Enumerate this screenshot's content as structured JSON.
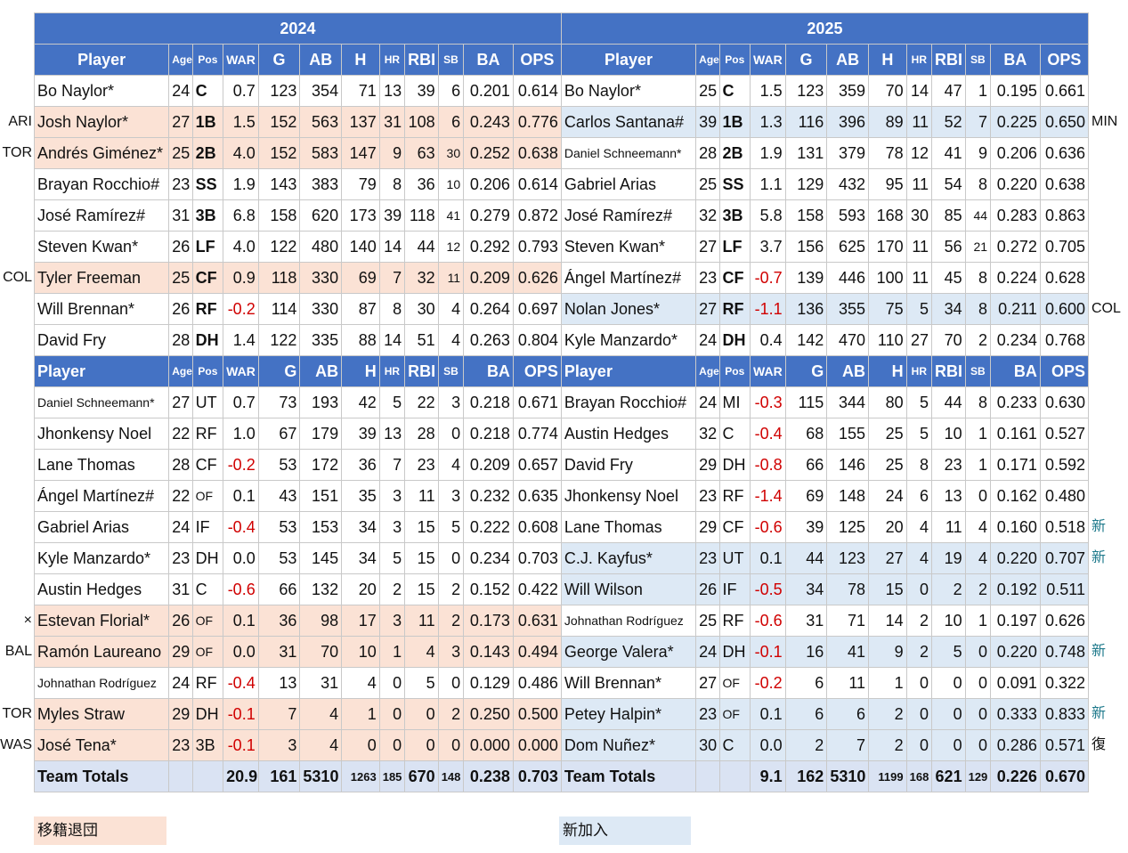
{
  "years": {
    "left": "2024",
    "right": "2025"
  },
  "headers": {
    "player": "Player",
    "age": "Age",
    "pos": "Pos",
    "war": "WAR",
    "g": "G",
    "ab": "AB",
    "h": "H",
    "hr": "HR",
    "rbi": "RBI",
    "sb": "SB",
    "ba": "BA",
    "ops": "OPS"
  },
  "starters": [
    {
      "l": [
        "Bo Naylor*",
        "24",
        "C",
        "0.7",
        "123",
        "354",
        "71",
        "13",
        "39",
        "6",
        "0.201",
        "0.614"
      ],
      "r": [
        "Bo Naylor*",
        "25",
        "C",
        "1.5",
        "123",
        "359",
        "70",
        "14",
        "47",
        "1",
        "0.195",
        "0.661"
      ]
    },
    {
      "l": [
        "Josh Naylor*",
        "27",
        "1B",
        "1.5",
        "152",
        "563",
        "137",
        "31",
        "108",
        "6",
        "0.243",
        "0.776"
      ],
      "r": [
        "Carlos Santana#",
        "39",
        "1B",
        "1.3",
        "116",
        "396",
        "89",
        "11",
        "52",
        "7",
        "0.225",
        "0.650"
      ]
    },
    {
      "l": [
        "Andrés Giménez*",
        "25",
        "2B",
        "4.0",
        "152",
        "583",
        "147",
        "9",
        "63",
        "30",
        "0.252",
        "0.638"
      ],
      "r": [
        "Daniel Schneemann*",
        "28",
        "2B",
        "1.9",
        "131",
        "379",
        "78",
        "12",
        "41",
        "9",
        "0.206",
        "0.636"
      ]
    },
    {
      "l": [
        "Brayan Rocchio#",
        "23",
        "SS",
        "1.9",
        "143",
        "383",
        "79",
        "8",
        "36",
        "10",
        "0.206",
        "0.614"
      ],
      "r": [
        "Gabriel Arias",
        "25",
        "SS",
        "1.1",
        "129",
        "432",
        "95",
        "11",
        "54",
        "8",
        "0.220",
        "0.638"
      ]
    },
    {
      "l": [
        "José Ramírez#",
        "31",
        "3B",
        "6.8",
        "158",
        "620",
        "173",
        "39",
        "118",
        "41",
        "0.279",
        "0.872"
      ],
      "r": [
        "José Ramírez#",
        "32",
        "3B",
        "5.8",
        "158",
        "593",
        "168",
        "30",
        "85",
        "44",
        "0.283",
        "0.863"
      ]
    },
    {
      "l": [
        "Steven Kwan*",
        "26",
        "LF",
        "4.0",
        "122",
        "480",
        "140",
        "14",
        "44",
        "12",
        "0.292",
        "0.793"
      ],
      "r": [
        "Steven Kwan*",
        "27",
        "LF",
        "3.7",
        "156",
        "625",
        "170",
        "11",
        "56",
        "21",
        "0.272",
        "0.705"
      ]
    },
    {
      "l": [
        "Tyler Freeman",
        "25",
        "CF",
        "0.9",
        "118",
        "330",
        "69",
        "7",
        "32",
        "11",
        "0.209",
        "0.626"
      ],
      "r": [
        "Ángel Martínez#",
        "23",
        "CF",
        "-0.7",
        "139",
        "446",
        "100",
        "11",
        "45",
        "8",
        "0.224",
        "0.628"
      ]
    },
    {
      "l": [
        "Will Brennan*",
        "26",
        "RF",
        "-0.2",
        "114",
        "330",
        "87",
        "8",
        "30",
        "4",
        "0.264",
        "0.697"
      ],
      "r": [
        "Nolan Jones*",
        "27",
        "RF",
        "-1.1",
        "136",
        "355",
        "75",
        "5",
        "34",
        "8",
        "0.211",
        "0.600"
      ]
    },
    {
      "l": [
        "David Fry",
        "28",
        "DH",
        "1.4",
        "122",
        "335",
        "88",
        "14",
        "51",
        "4",
        "0.263",
        "0.804"
      ],
      "r": [
        "Kyle Manzardo*",
        "24",
        "DH",
        "0.4",
        "142",
        "470",
        "110",
        "27",
        "70",
        "2",
        "0.234",
        "0.768"
      ]
    }
  ],
  "bench": [
    {
      "l": [
        "Daniel Schneemann*",
        "27",
        "UT",
        "0.7",
        "73",
        "193",
        "42",
        "5",
        "22",
        "3",
        "0.218",
        "0.671"
      ],
      "r": [
        "Brayan Rocchio#",
        "24",
        "MI",
        "-0.3",
        "115",
        "344",
        "80",
        "5",
        "44",
        "8",
        "0.233",
        "0.630"
      ]
    },
    {
      "l": [
        "Jhonkensy Noel",
        "22",
        "RF",
        "1.0",
        "67",
        "179",
        "39",
        "13",
        "28",
        "0",
        "0.218",
        "0.774"
      ],
      "r": [
        "Austin Hedges",
        "32",
        "C",
        "-0.4",
        "68",
        "155",
        "25",
        "5",
        "10",
        "1",
        "0.161",
        "0.527"
      ]
    },
    {
      "l": [
        "Lane Thomas",
        "28",
        "CF",
        "-0.2",
        "53",
        "172",
        "36",
        "7",
        "23",
        "4",
        "0.209",
        "0.657"
      ],
      "r": [
        "David Fry",
        "29",
        "DH",
        "-0.8",
        "66",
        "146",
        "25",
        "8",
        "23",
        "1",
        "0.171",
        "0.592"
      ]
    },
    {
      "l": [
        "Ángel Martínez#",
        "22",
        "OF",
        "0.1",
        "43",
        "151",
        "35",
        "3",
        "11",
        "3",
        "0.232",
        "0.635"
      ],
      "r": [
        "Jhonkensy Noel",
        "23",
        "RF",
        "-1.4",
        "69",
        "148",
        "24",
        "6",
        "13",
        "0",
        "0.162",
        "0.480"
      ]
    },
    {
      "l": [
        "Gabriel Arias",
        "24",
        "IF",
        "-0.4",
        "53",
        "153",
        "34",
        "3",
        "15",
        "5",
        "0.222",
        "0.608"
      ],
      "r": [
        "Lane Thomas",
        "29",
        "CF",
        "-0.6",
        "39",
        "125",
        "20",
        "4",
        "11",
        "4",
        "0.160",
        "0.518"
      ]
    },
    {
      "l": [
        "Kyle Manzardo*",
        "23",
        "DH",
        "0.0",
        "53",
        "145",
        "34",
        "5",
        "15",
        "0",
        "0.234",
        "0.703"
      ],
      "r": [
        "C.J. Kayfus*",
        "23",
        "UT",
        "0.1",
        "44",
        "123",
        "27",
        "4",
        "19",
        "4",
        "0.220",
        "0.707"
      ]
    },
    {
      "l": [
        "Austin Hedges",
        "31",
        "C",
        "-0.6",
        "66",
        "132",
        "20",
        "2",
        "15",
        "2",
        "0.152",
        "0.422"
      ],
      "r": [
        "Will Wilson",
        "26",
        "IF",
        "-0.5",
        "34",
        "78",
        "15",
        "0",
        "2",
        "2",
        "0.192",
        "0.511"
      ]
    },
    {
      "l": [
        "Estevan Florial*",
        "26",
        "OF",
        "0.1",
        "36",
        "98",
        "17",
        "3",
        "11",
        "2",
        "0.173",
        "0.631"
      ],
      "r": [
        "Johnathan Rodríguez",
        "25",
        "RF",
        "-0.6",
        "31",
        "71",
        "14",
        "2",
        "10",
        "1",
        "0.197",
        "0.626"
      ]
    },
    {
      "l": [
        "Ramón Laureano",
        "29",
        "OF",
        "0.0",
        "31",
        "70",
        "10",
        "1",
        "4",
        "3",
        "0.143",
        "0.494"
      ],
      "r": [
        "George Valera*",
        "24",
        "DH",
        "-0.1",
        "16",
        "41",
        "9",
        "2",
        "5",
        "0",
        "0.220",
        "0.748"
      ]
    },
    {
      "l": [
        "Johnathan Rodríguez",
        "24",
        "RF",
        "-0.4",
        "13",
        "31",
        "4",
        "0",
        "5",
        "0",
        "0.129",
        "0.486"
      ],
      "r": [
        "Will Brennan*",
        "27",
        "OF",
        "-0.2",
        "6",
        "11",
        "1",
        "0",
        "0",
        "0",
        "0.091",
        "0.322"
      ]
    },
    {
      "l": [
        "Myles Straw",
        "29",
        "DH",
        "-0.1",
        "7",
        "4",
        "1",
        "0",
        "0",
        "2",
        "0.250",
        "0.500"
      ],
      "r": [
        "Petey Halpin*",
        "23",
        "OF",
        "0.1",
        "6",
        "6",
        "2",
        "0",
        "0",
        "0",
        "0.333",
        "0.833"
      ]
    },
    {
      "l": [
        "José Tena*",
        "23",
        "3B",
        "-0.1",
        "3",
        "4",
        "0",
        "0",
        "0",
        "0",
        "0.000",
        "0.000"
      ],
      "r": [
        "Dom Nuñez*",
        "30",
        "C",
        "0.0",
        "2",
        "7",
        "2",
        "0",
        "0",
        "0",
        "0.286",
        "0.571"
      ]
    }
  ],
  "totals": {
    "l": [
      "Team Totals",
      "",
      "",
      "20.9",
      "161",
      "5310",
      "1263",
      "185",
      "670",
      "148",
      "0.238",
      "0.703"
    ],
    "r": [
      "Team Totals",
      "",
      "",
      "9.1",
      "162",
      "5310",
      "1199",
      "168",
      "621",
      "129",
      "0.226",
      "0.670"
    ]
  },
  "side_left": [
    "ARI",
    "TOR",
    "COL",
    "×",
    "BAL",
    "TOR",
    "WAS"
  ],
  "side_right": [
    "MIN",
    "COL",
    "新",
    "新",
    "新",
    "新",
    "復"
  ],
  "legend": {
    "left": "移籍退団",
    "right": "新加入",
    "left_color": "#fbe2d5",
    "right_color": "#dde9f5"
  },
  "colors": {
    "header_bg": "#4472c4",
    "negative": "#d00000",
    "new_mark": "#1f7a8c",
    "totals_bg": "#dae3f3"
  }
}
